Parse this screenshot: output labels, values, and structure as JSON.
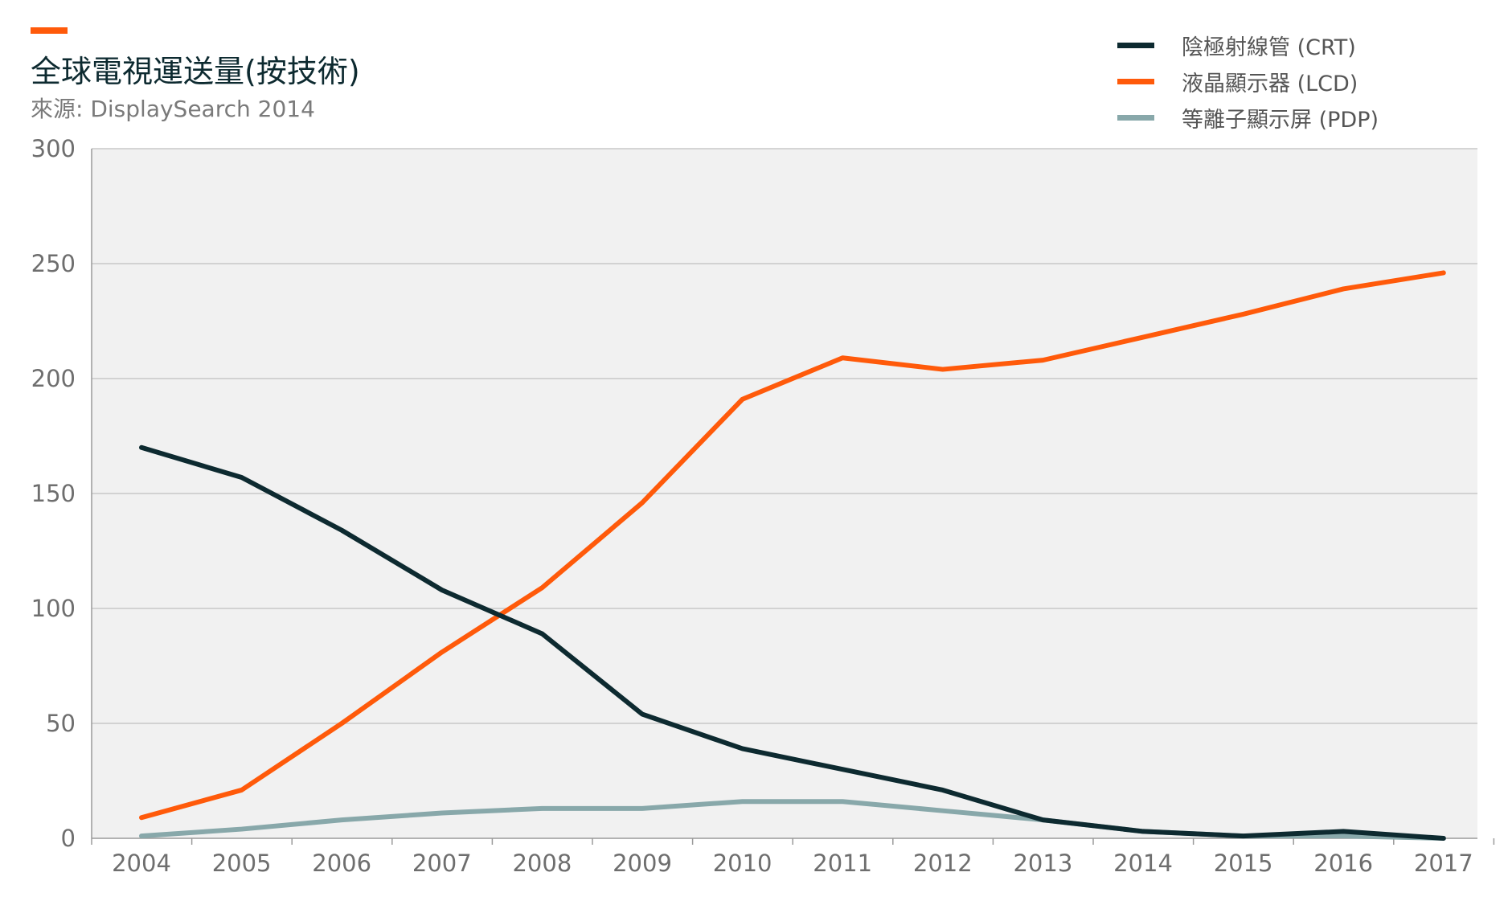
{
  "header": {
    "title": "全球電視運送量(按技術)",
    "source": "來源: DisplaySearch 2014"
  },
  "colors": {
    "accent": "#ff5a0a",
    "plot_background": "#f1f1f1",
    "grid": "#c8c8c8"
  },
  "chart_data": {
    "type": "line",
    "title": "全球電視運送量(按技術)",
    "subtitle": "來源: DisplaySearch 2014",
    "xlabel": "",
    "ylabel": "",
    "x": [
      "2004",
      "2005",
      "2006",
      "2007",
      "2008",
      "2009",
      "2010",
      "2011",
      "2012",
      "2013",
      "2014",
      "2015",
      "2016",
      "2017"
    ],
    "ylim": [
      0,
      300
    ],
    "yticks": [
      0,
      50,
      100,
      150,
      200,
      250,
      300
    ],
    "grid": true,
    "legend_position": "top-right",
    "series": [
      {
        "name": "陰極射線管 (CRT)",
        "color": "#0d2a30",
        "values": [
          170,
          157,
          134,
          108,
          89,
          54,
          39,
          30,
          21,
          8,
          3,
          1,
          3,
          0
        ]
      },
      {
        "name": "液晶顯示器 (LCD)",
        "color": "#ff5a0a",
        "values": [
          9,
          21,
          50,
          81,
          109,
          146,
          191,
          209,
          204,
          208,
          218,
          228,
          239,
          246
        ]
      },
      {
        "name": "等離子顯示屏 (PDP)",
        "color": "#88a8aa",
        "values": [
          1,
          4,
          8,
          11,
          13,
          13,
          16,
          16,
          12,
          8,
          3,
          1,
          1,
          0
        ]
      }
    ]
  }
}
